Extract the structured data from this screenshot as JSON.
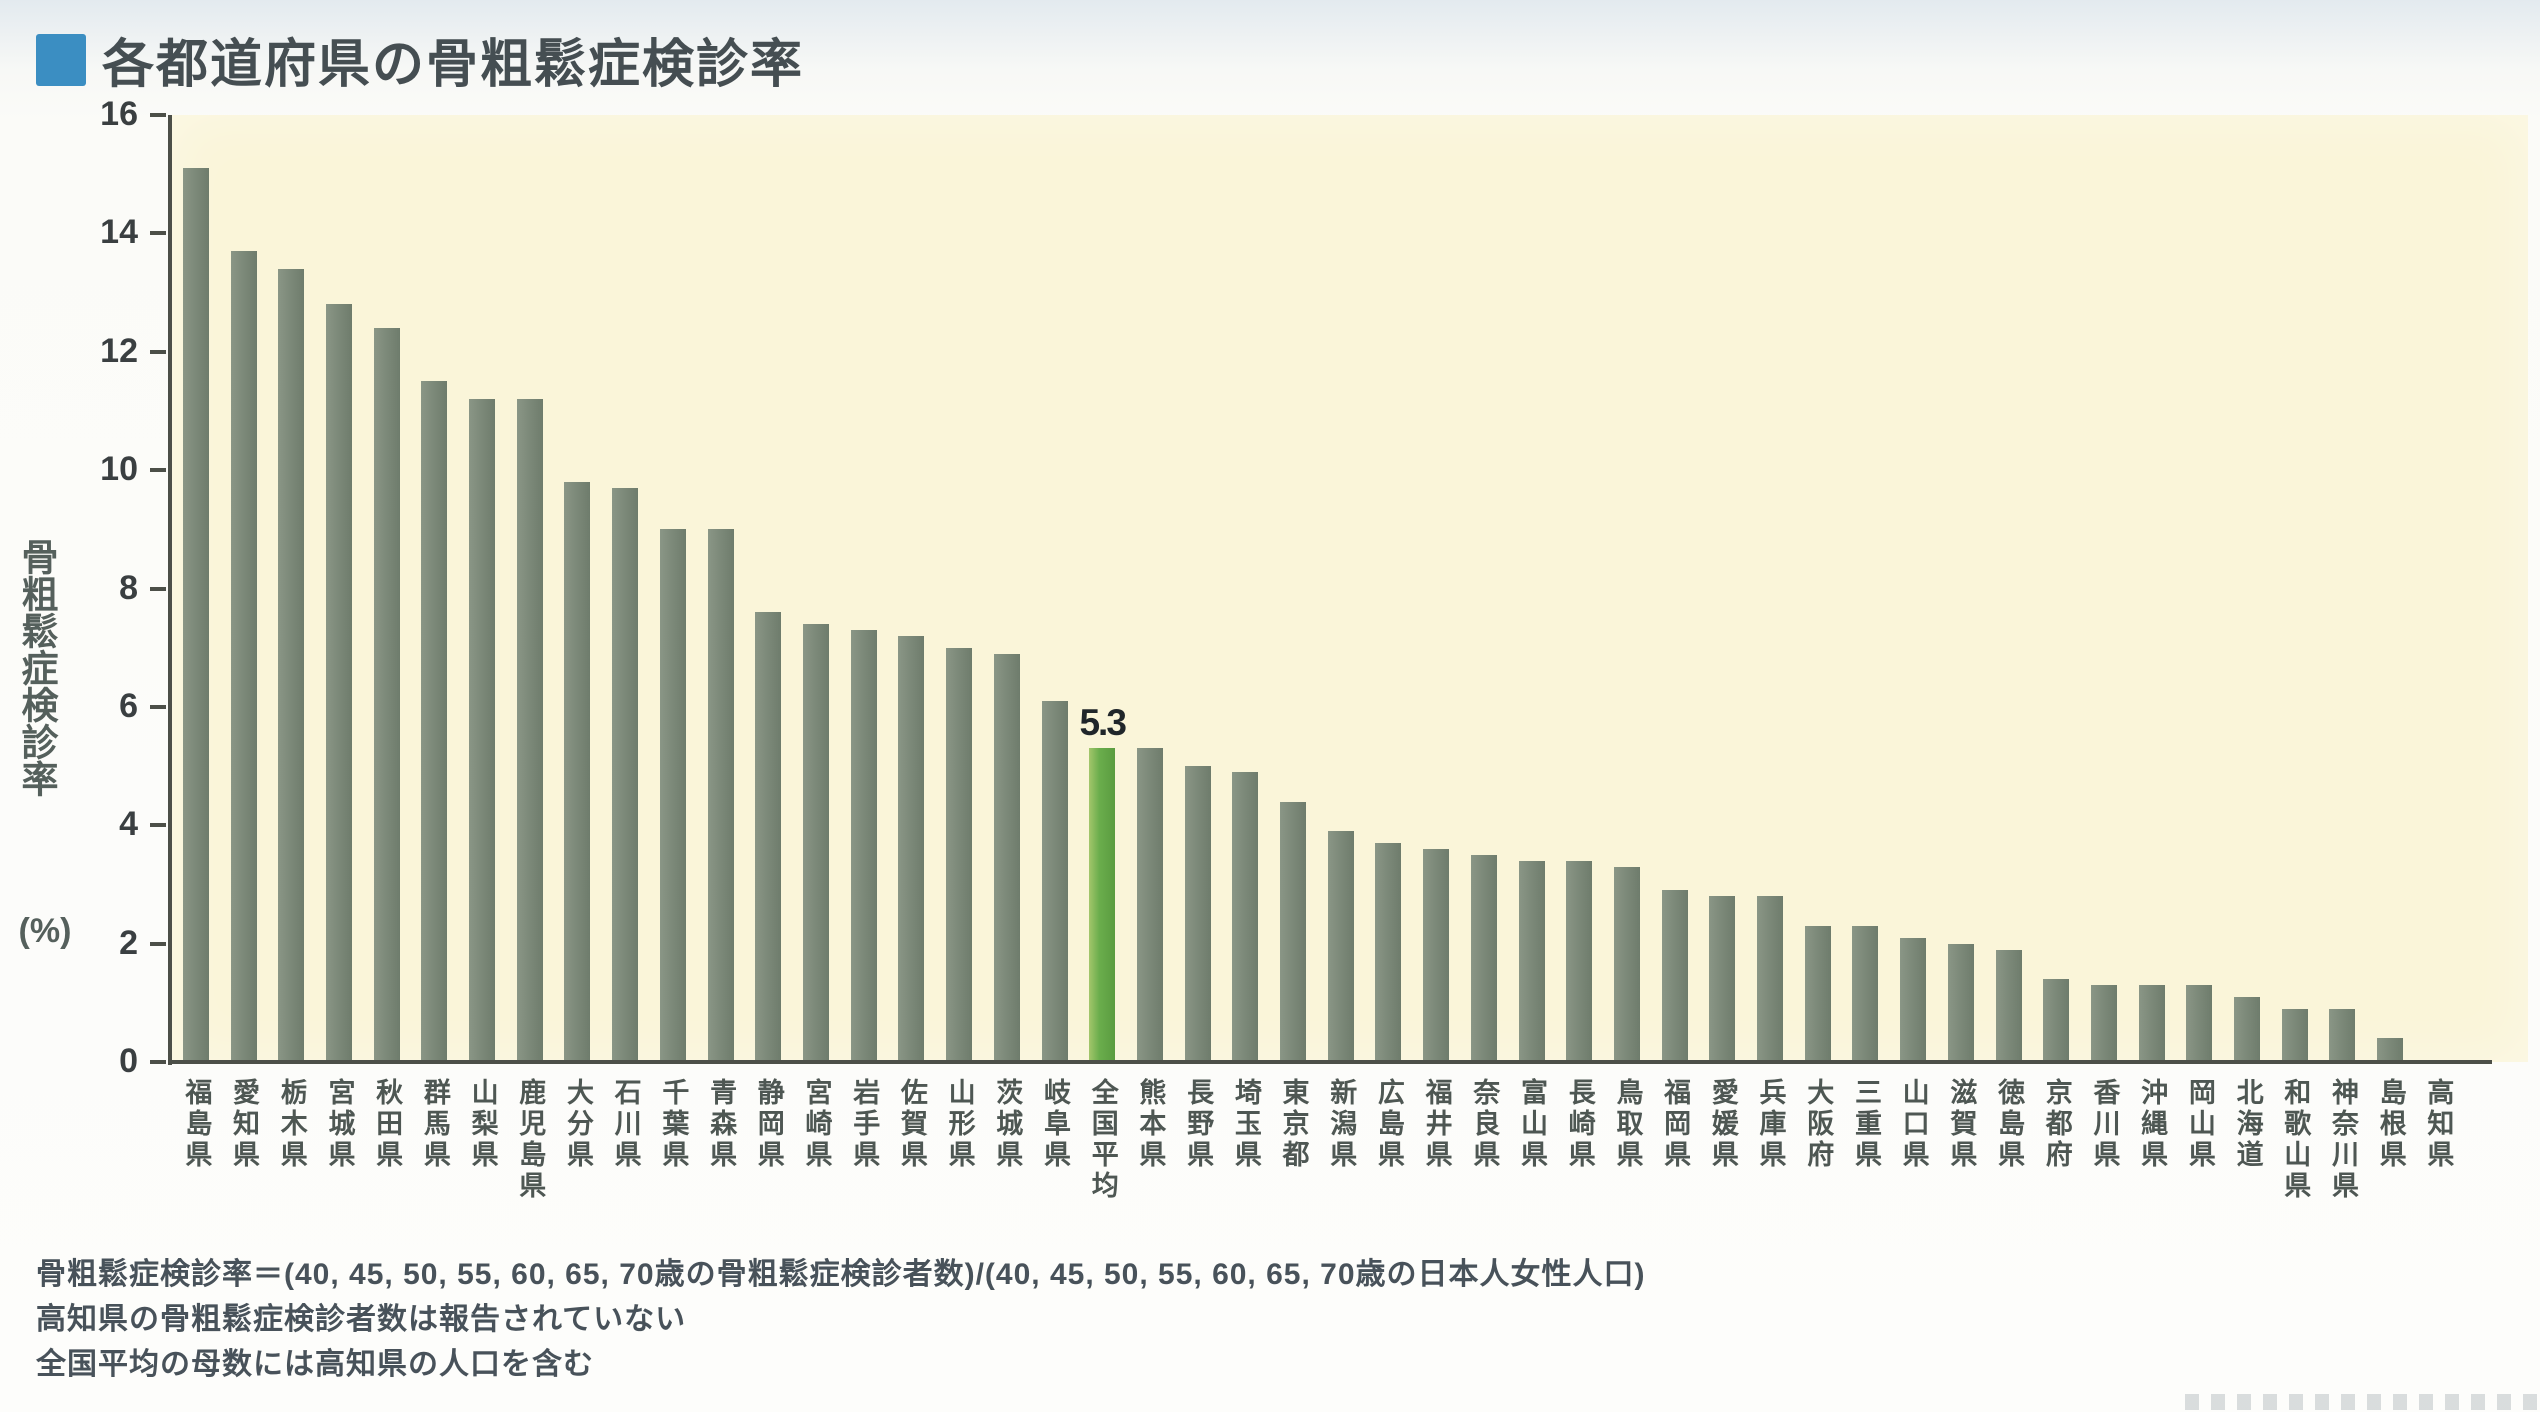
{
  "page": {
    "title": "各都道府県の骨粗鬆症検診率",
    "title_bullet_color": "#3b8ec2"
  },
  "chart_data": {
    "type": "bar",
    "title": "各都道府県の骨粗鬆症検診率",
    "ylabel": "骨粗鬆症検診率",
    "ylabel_unit": "(%)",
    "ylim": [
      0,
      16
    ],
    "yticks": [
      0,
      2,
      4,
      6,
      8,
      10,
      12,
      14,
      16
    ],
    "grid": false,
    "legend": "none",
    "plot_bg": "#faf5d9",
    "bar_color": "#7d8a7a",
    "highlight_color": "#6aad4c",
    "highlight_index": 19,
    "annotation": {
      "label": "5.3",
      "category": "全国平均"
    },
    "categories": [
      "福島県",
      "愛知県",
      "栃木県",
      "宮城県",
      "秋田県",
      "群馬県",
      "山梨県",
      "鹿児島県",
      "大分県",
      "石川県",
      "千葉県",
      "青森県",
      "静岡県",
      "宮崎県",
      "岩手県",
      "佐賀県",
      "山形県",
      "茨城県",
      "岐阜県",
      "全国平均",
      "熊本県",
      "長野県",
      "埼玉県",
      "東京都",
      "新潟県",
      "広島県",
      "福井県",
      "奈良県",
      "富山県",
      "長崎県",
      "鳥取県",
      "福岡県",
      "愛媛県",
      "兵庫県",
      "大阪府",
      "三重県",
      "山口県",
      "滋賀県",
      "徳島県",
      "京都府",
      "香川県",
      "沖縄県",
      "岡山県",
      "北海道",
      "和歌山県",
      "神奈川県",
      "島根県",
      "高知県"
    ],
    "values": [
      15.1,
      13.7,
      13.4,
      12.8,
      12.4,
      11.5,
      11.2,
      11.2,
      9.8,
      9.7,
      9.0,
      9.0,
      7.6,
      7.4,
      7.3,
      7.2,
      7.0,
      6.9,
      6.1,
      5.3,
      5.3,
      5.0,
      4.9,
      4.4,
      3.9,
      3.7,
      3.6,
      3.5,
      3.4,
      3.4,
      3.3,
      2.9,
      2.8,
      2.8,
      2.3,
      2.3,
      2.1,
      2.0,
      1.9,
      1.4,
      1.3,
      1.3,
      1.3,
      1.1,
      0.9,
      0.9,
      0.4,
      null
    ],
    "no_data_categories": [
      "高知県"
    ]
  },
  "footnotes": [
    "骨粗鬆症検診率＝(40, 45, 50, 55, 60, 65, 70歳の骨粗鬆症検診者数)/(40, 45, 50, 55, 60, 65, 70歳の日本人女性人口)",
    "高知県の骨粗鬆症検診者数は報告されていない",
    "全国平均の母数には高知県の人口を含む"
  ]
}
